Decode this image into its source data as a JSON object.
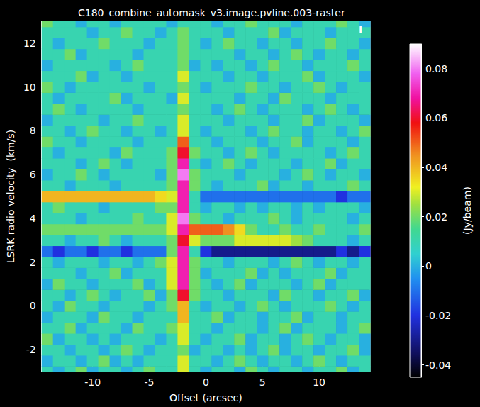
{
  "chart_data": {
    "type": "heatmap",
    "title": "C180_combine_automask_v3.image.pvline.003-raster",
    "x_label": "Offset (arcsec)",
    "y_label": "LSRK radio velocity  (km/s)",
    "annotations": [
      "I"
    ],
    "grid": false,
    "xlim": [
      -14.5,
      14.5
    ],
    "xticks": [
      -10,
      -5,
      0,
      5,
      10
    ],
    "ylim": [
      -3,
      13
    ],
    "yticks": [
      -2,
      0,
      2,
      4,
      6,
      8,
      10,
      12
    ],
    "colorbar": {
      "label": "(Jy/beam)",
      "range": [
        -0.045,
        0.09
      ],
      "ticks": [
        -0.04,
        -0.02,
        0,
        0.02,
        0.04,
        0.06,
        0.08
      ]
    },
    "x": [
      -14,
      -13,
      -12,
      -11,
      -10,
      -9,
      -8,
      -7,
      -6,
      -5,
      -4,
      -3,
      -2,
      -1,
      0,
      1,
      2,
      3,
      4,
      5,
      6,
      7,
      8,
      9,
      10,
      11,
      12,
      13,
      14
    ],
    "y": [
      -3,
      -2.5,
      -2,
      -1.5,
      -1,
      -0.5,
      0,
      0.5,
      1,
      1.5,
      2,
      2.5,
      3,
      3.5,
      4,
      4.5,
      5,
      5.5,
      6,
      6.5,
      7,
      7.5,
      8,
      8.5,
      9,
      9.5,
      10,
      10.5,
      11,
      11.5,
      12,
      12.5,
      13
    ],
    "values": [
      [
        0.01,
        0,
        0.01,
        0.02,
        0,
        0.01,
        0.01,
        0,
        0.01,
        0.02,
        0.01,
        0.01,
        0.03,
        0.01,
        0,
        0.01,
        0.01,
        0,
        0.02,
        0.01,
        0,
        0.01,
        0.01,
        0,
        0.01,
        0.01,
        0.02,
        0,
        0.01
      ],
      [
        0,
        0.01,
        0.01,
        0,
        0.01,
        0.02,
        0,
        0.01,
        0,
        0.01,
        0.01,
        0.01,
        0.03,
        0.01,
        0.01,
        0,
        0.01,
        0.02,
        0.01,
        0,
        0.01,
        0.01,
        0,
        0.01,
        0.02,
        0.01,
        0,
        0.01,
        0.01
      ],
      [
        0.01,
        0.01,
        0,
        0.01,
        0.01,
        0,
        0.01,
        0.02,
        0.01,
        0,
        0.01,
        0.01,
        0.02,
        0,
        0.01,
        0.01,
        0,
        0.01,
        0,
        0.01,
        0.02,
        0,
        0.01,
        0.01,
        0,
        0.01,
        0.01,
        0.02,
        0
      ],
      [
        0.02,
        0,
        0.01,
        0.01,
        0,
        0.01,
        0,
        0.01,
        0.01,
        0.01,
        0,
        0.01,
        0.03,
        0.01,
        0,
        0.01,
        0.01,
        0.02,
        0,
        0.01,
        0.01,
        0,
        0.01,
        0.02,
        0.01,
        0,
        0.01,
        0.01,
        0
      ],
      [
        0.01,
        0.01,
        0.02,
        0,
        0.01,
        0.01,
        0.01,
        0,
        0.02,
        0.01,
        0.01,
        0.02,
        0.03,
        0.01,
        0.01,
        0,
        0.01,
        0.01,
        0.01,
        0,
        0.01,
        0.02,
        0,
        0.01,
        0.01,
        0.01,
        0,
        0.01,
        0.02
      ],
      [
        0,
        0.01,
        0.01,
        0.01,
        0,
        0.02,
        0.01,
        0.01,
        0,
        0.01,
        0.01,
        0.01,
        0.04,
        0.01,
        0.01,
        0.02,
        0,
        0.01,
        0.01,
        0,
        0.01,
        0.01,
        0.02,
        0,
        0.01,
        0.01,
        0,
        0.01,
        0.01
      ],
      [
        0.01,
        0,
        0.02,
        0.01,
        0.01,
        0,
        0.01,
        0.01,
        0.01,
        0,
        0.01,
        0.02,
        0.04,
        0.01,
        0,
        0.01,
        0.01,
        0,
        0.01,
        0.02,
        0.01,
        0,
        0.01,
        0.01,
        0.01,
        0.02,
        0.01,
        0,
        0.01
      ],
      [
        0.01,
        0.01,
        0,
        0.01,
        0.02,
        0.01,
        0,
        0.01,
        0.01,
        0.02,
        0,
        0.02,
        0.06,
        0.02,
        0.01,
        0.01,
        0,
        0.01,
        0.01,
        0.01,
        0,
        0.02,
        0.01,
        0.01,
        0,
        0.01,
        0.01,
        0.02,
        0
      ],
      [
        0,
        0.02,
        0.01,
        0.01,
        0,
        0.01,
        0.01,
        0.01,
        0.02,
        0,
        0.01,
        0.03,
        0.07,
        0.02,
        0.01,
        0,
        0.01,
        0.02,
        0,
        0.01,
        0.01,
        0.01,
        0,
        0.01,
        0.02,
        0,
        0.01,
        0.01,
        0.01
      ],
      [
        0.01,
        0.01,
        0.01,
        0,
        0.01,
        0.01,
        0.02,
        0,
        0.01,
        0.01,
        0.01,
        0.03,
        0.07,
        0.02,
        0,
        0.01,
        0.01,
        0.01,
        0.02,
        0,
        0.01,
        0,
        0.01,
        0.01,
        0.01,
        0.02,
        0,
        0.01,
        0.01
      ],
      [
        0.01,
        0,
        0.01,
        0.01,
        0.01,
        0,
        0.01,
        0.01,
        0,
        0.01,
        0.02,
        0.03,
        0.07,
        0.02,
        0.01,
        0.01,
        0,
        0.01,
        0.01,
        0.01,
        0,
        0.01,
        0.02,
        0.01,
        0,
        0.01,
        0.01,
        0,
        0.01
      ],
      [
        -0.01,
        -0.02,
        -0.01,
        -0.01,
        -0.02,
        -0.01,
        -0.01,
        -0.02,
        -0.01,
        -0.01,
        -0.01,
        0.02,
        0.07,
        0.01,
        -0.02,
        -0.03,
        -0.03,
        -0.03,
        -0.03,
        -0.03,
        -0.03,
        -0.03,
        -0.03,
        -0.03,
        -0.03,
        -0.03,
        -0.02,
        -0.03,
        -0.02
      ],
      [
        0.01,
        0.01,
        0,
        0.01,
        0.01,
        0.02,
        0.01,
        0,
        0.01,
        0.01,
        0.01,
        0.02,
        0.06,
        0.03,
        0.02,
        0.02,
        0.02,
        0.03,
        0.03,
        0.03,
        0.03,
        0.03,
        0.025,
        0.02,
        0.01,
        0.01,
        0.01,
        0,
        0.01
      ],
      [
        0.02,
        0.02,
        0.02,
        0.02,
        0.02,
        0.02,
        0.02,
        0.02,
        0.02,
        0.02,
        0.02,
        0.03,
        0.07,
        0.05,
        0.05,
        0.05,
        0.045,
        0.035,
        0.02,
        0.01,
        0.01,
        0.02,
        0.01,
        0.01,
        0.02,
        0.01,
        0.01,
        0.01,
        0.02
      ],
      [
        0.01,
        0.01,
        0.01,
        0,
        0.01,
        0.01,
        0.01,
        0.01,
        0.02,
        0.01,
        0.01,
        0.03,
        0.08,
        0.02,
        0.01,
        0.01,
        0,
        0.01,
        0.01,
        0.01,
        0.02,
        0.01,
        0,
        0.01,
        0.01,
        0.01,
        0.01,
        0,
        0.01
      ],
      [
        0.01,
        0.02,
        0.01,
        0.01,
        0.01,
        0,
        0.01,
        0.01,
        0.01,
        0.01,
        0.02,
        0.02,
        0.07,
        0.01,
        0,
        0.01,
        0.01,
        0,
        0.01,
        0,
        0.01,
        0.01,
        0,
        0.01,
        0,
        0.01,
        0.01,
        0.01,
        0
      ],
      [
        0.04,
        0.04,
        0.04,
        0.04,
        0.04,
        0.04,
        0.04,
        0.04,
        0.04,
        0.04,
        0.035,
        0.03,
        0.07,
        0.01,
        -0.01,
        -0.01,
        -0.01,
        -0.01,
        -0.01,
        -0.01,
        -0.01,
        -0.01,
        -0.01,
        -0.01,
        -0.01,
        -0.01,
        -0.02,
        -0.01,
        -0.01
      ],
      [
        0.01,
        0.01,
        0,
        0.01,
        0.01,
        0.01,
        0,
        0.01,
        0.01,
        0.01,
        0.01,
        0.02,
        0.07,
        0.02,
        0.01,
        0,
        0.01,
        0.01,
        0.01,
        0.02,
        0,
        0.01,
        0.01,
        0,
        0.01,
        0.01,
        0.01,
        0.02,
        0.01
      ],
      [
        0,
        0.01,
        0.01,
        0.02,
        0.01,
        0,
        0.01,
        0.01,
        0.01,
        0.01,
        0,
        0.02,
        0.08,
        0.02,
        0.01,
        0.01,
        0.01,
        0,
        0.01,
        0.01,
        0.01,
        0,
        0.01,
        0.02,
        0.01,
        0,
        0.01,
        0.01,
        0
      ],
      [
        0.01,
        0.01,
        0.01,
        0,
        0.01,
        0.02,
        0.01,
        0,
        0.01,
        0.01,
        0.01,
        0.02,
        0.07,
        0.01,
        0,
        0.01,
        0.02,
        0.01,
        0,
        0.01,
        0.01,
        0.01,
        0,
        0.01,
        0.01,
        0.02,
        0,
        0.01,
        0.01
      ],
      [
        0.01,
        0,
        0.01,
        0.01,
        0.01,
        0.01,
        0,
        0.02,
        0.01,
        0.01,
        0.01,
        0.02,
        0.06,
        0.02,
        0.01,
        0.01,
        0,
        0.01,
        0.02,
        0.01,
        0,
        0.01,
        0.01,
        0.01,
        0.01,
        0,
        0.01,
        0.02,
        0.01
      ],
      [
        0.02,
        0.01,
        0.01,
        0,
        0.01,
        0.01,
        0.01,
        0.01,
        0,
        0.01,
        0.01,
        0.01,
        0.05,
        0.01,
        0.01,
        0,
        0.01,
        0.01,
        0.01,
        0,
        0.01,
        0.01,
        0.02,
        0,
        0.01,
        0.01,
        0.01,
        0,
        0.01
      ],
      [
        0.01,
        0.01,
        0,
        0.01,
        0.02,
        0.01,
        0.01,
        0,
        0.01,
        0.01,
        0,
        0.01,
        0.03,
        0.01,
        0,
        0.01,
        0.01,
        0.01,
        0,
        0.01,
        0.02,
        0.01,
        0.01,
        0,
        0.01,
        0.01,
        0,
        0.01,
        0.02
      ],
      [
        0,
        0.01,
        0.01,
        0.01,
        0.01,
        0,
        0.01,
        0.01,
        0.02,
        0.01,
        0.01,
        0.01,
        0.03,
        0.01,
        0.01,
        0.01,
        0,
        0.01,
        0.01,
        0.01,
        0,
        0.01,
        0.01,
        0.02,
        0,
        0.01,
        0.01,
        0.01,
        0
      ],
      [
        0.01,
        0.02,
        0.01,
        0,
        0.01,
        0.01,
        0.01,
        0.01,
        0,
        0.01,
        0.01,
        0.01,
        0.02,
        0.01,
        0.01,
        0,
        0.01,
        0.02,
        0.01,
        0,
        0.01,
        0.01,
        0.01,
        0,
        0.01,
        0.02,
        0.01,
        0,
        0.01
      ],
      [
        0.01,
        0,
        0.01,
        0.01,
        0.01,
        0.01,
        0.02,
        0,
        0.01,
        0.01,
        0.01,
        0,
        0.03,
        0.01,
        0.01,
        0.01,
        0.01,
        0,
        0.01,
        0.01,
        0,
        0.02,
        0.01,
        0.01,
        0.01,
        0,
        0.01,
        0.01,
        0.01
      ],
      [
        0.02,
        0.01,
        0,
        0.01,
        0.01,
        0.01,
        0.01,
        0.01,
        0.01,
        0,
        0.01,
        0.01,
        0.02,
        0.01,
        0,
        0.01,
        0.01,
        0.01,
        0.02,
        0.01,
        0.01,
        0,
        0.01,
        0.01,
        0.02,
        0.01,
        0,
        0.01,
        0.01
      ],
      [
        0.01,
        0.01,
        0.01,
        0.02,
        0,
        0.01,
        0.01,
        0,
        0.01,
        0.01,
        0.01,
        0.01,
        0.03,
        0.01,
        0.01,
        0.01,
        0,
        0.01,
        0.01,
        0,
        0.01,
        0.01,
        0.01,
        0.02,
        0,
        0.01,
        0.01,
        0.01,
        0
      ],
      [
        0,
        0.01,
        0.01,
        0.01,
        0.01,
        0.01,
        0,
        0.01,
        0.02,
        0.01,
        0.01,
        0.01,
        0.02,
        0,
        0.01,
        0,
        0.01,
        0.01,
        0,
        0.01,
        0.02,
        0.01,
        0.01,
        0,
        0.01,
        0.01,
        0.01,
        0.02,
        0.01
      ],
      [
        0.01,
        0.01,
        0.02,
        0,
        0.01,
        0.01,
        0.01,
        0.01,
        0,
        0.01,
        0.01,
        0.01,
        0.02,
        0.01,
        0.01,
        0.01,
        0.01,
        0,
        0.01,
        0.01,
        0,
        0.01,
        0.02,
        0.01,
        0,
        0.01,
        0.01,
        0,
        0.01
      ],
      [
        0.01,
        0,
        0.01,
        0.01,
        0.01,
        0.02,
        0.01,
        0.01,
        0.01,
        0,
        0.01,
        0.01,
        0.02,
        0.01,
        0,
        0.01,
        0.02,
        0.01,
        0.01,
        0,
        0.01,
        0.01,
        0,
        0.01,
        0.01,
        0.02,
        0.01,
        0.01,
        0
      ],
      [
        0.01,
        0.01,
        0.01,
        0.01,
        0,
        0.01,
        0.01,
        0.02,
        0.01,
        0.01,
        0,
        0.01,
        0.02,
        0.01,
        0.01,
        0.01,
        0,
        0.01,
        0.01,
        0.01,
        0.02,
        0,
        0.01,
        0.01,
        0.01,
        0,
        0.01,
        0.01,
        0.01
      ],
      [
        0.02,
        0.01,
        0.01,
        0,
        0.01,
        0.01,
        0,
        0.01,
        0.01,
        0.01,
        0.01,
        0,
        0.01,
        0.01,
        0.01,
        0,
        0.01,
        0.01,
        0.02,
        0.01,
        0.01,
        0.01,
        0,
        0.01,
        0.01,
        0.01,
        0.02,
        0.01,
        0
      ]
    ]
  }
}
